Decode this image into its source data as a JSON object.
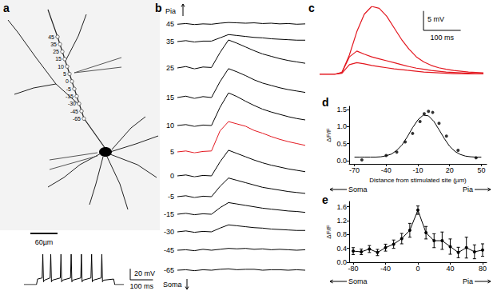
{
  "chart_data": [
    {
      "type": "diagram",
      "title": "a",
      "site_labels": [
        45,
        35,
        25,
        15,
        10,
        5,
        0,
        -5,
        -15,
        -30,
        -45,
        -65
      ],
      "scale_bar": {
        "value": 60,
        "label": "60µm"
      }
    },
    {
      "type": "line",
      "color": "#000000",
      "tick_labels": false,
      "x": [
        0,
        55,
        60,
        80,
        83,
        86,
        90,
        115,
        118,
        121,
        125,
        160,
        163,
        166,
        170,
        205,
        208,
        211,
        215,
        250,
        253,
        256,
        260,
        295,
        298,
        301,
        305,
        340,
        343,
        346,
        350,
        395,
        400,
        440
      ],
      "values": [
        0,
        0,
        10,
        12,
        55,
        5,
        8,
        12,
        55,
        5,
        8,
        12,
        55,
        5,
        8,
        12,
        55,
        5,
        8,
        12,
        55,
        5,
        8,
        12,
        55,
        5,
        8,
        12,
        55,
        5,
        8,
        10,
        0,
        0
      ],
      "scale_bars": [
        {
          "value": 20,
          "label": "20 mV"
        },
        {
          "value": 100,
          "label": "100 ms"
        }
      ]
    },
    {
      "type": "line",
      "title": "b",
      "tick_labels": false,
      "annotations": [
        "Pia",
        "Soma"
      ],
      "x": [
        0,
        50,
        100,
        150,
        200,
        250,
        300,
        350,
        400,
        450,
        500,
        550,
        600,
        650,
        700,
        750
      ],
      "series": [
        {
          "name": "45",
          "color": "#000000",
          "values": [
            0,
            0.02,
            -0.01,
            0.01,
            0,
            0.03,
            0.05,
            0.04,
            0.03,
            0.04,
            0.02,
            0.03,
            0.01,
            0.02,
            0,
            0.01
          ]
        },
        {
          "name": "35",
          "color": "#000000",
          "values": [
            0,
            0.02,
            -0.01,
            0.01,
            0.01,
            0.08,
            0.15,
            0.13,
            0.11,
            0.09,
            0.08,
            0.06,
            0.05,
            0.04,
            0.03,
            0.03
          ]
        },
        {
          "name": "25",
          "color": "#000000",
          "values": [
            0,
            0.03,
            -0.02,
            0.02,
            0.01,
            0.33,
            0.6,
            0.53,
            0.45,
            0.37,
            0.3,
            0.25,
            0.2,
            0.16,
            0.13,
            0.1
          ]
        },
        {
          "name": "15",
          "color": "#000000",
          "values": [
            0,
            0.03,
            -0.02,
            0.02,
            0,
            0.34,
            0.62,
            0.55,
            0.47,
            0.38,
            0.31,
            0.26,
            0.21,
            0.17,
            0.14,
            0.11
          ]
        },
        {
          "name": "10",
          "color": "#000000",
          "values": [
            0,
            0.02,
            -0.02,
            0.01,
            0,
            0.39,
            0.7,
            0.62,
            0.52,
            0.43,
            0.35,
            0.29,
            0.24,
            0.19,
            0.15,
            0.12
          ]
        },
        {
          "name": "5",
          "color": "#e3171f",
          "values": [
            0,
            0.02,
            -0.02,
            0.01,
            0.02,
            0.45,
            0.65,
            0.6,
            0.55,
            0.46,
            0.4,
            0.33,
            0.27,
            0.22,
            0.18,
            0.14
          ]
        },
        {
          "name": "0",
          "color": "#000000",
          "values": [
            0,
            0.02,
            -0.02,
            0.01,
            0,
            0.3,
            0.55,
            0.48,
            0.41,
            0.34,
            0.28,
            0.23,
            0.19,
            0.15,
            0.12,
            0.09
          ]
        },
        {
          "name": "-5",
          "color": "#000000",
          "values": [
            0,
            0.02,
            -0.02,
            0.01,
            0,
            0.22,
            0.4,
            0.35,
            0.3,
            0.25,
            0.2,
            0.17,
            0.14,
            0.11,
            0.09,
            0.07
          ]
        },
        {
          "name": "-15",
          "color": "#000000",
          "values": [
            0,
            0.02,
            -0.01,
            0.01,
            0,
            0.14,
            0.25,
            0.22,
            0.19,
            0.16,
            0.13,
            0.11,
            0.09,
            0.07,
            0.06,
            0.04
          ]
        },
        {
          "name": "-30",
          "color": "#000000",
          "values": [
            0,
            0.02,
            -0.01,
            0.01,
            0,
            0.08,
            0.15,
            0.13,
            0.11,
            0.09,
            0.08,
            0.06,
            0.05,
            0.04,
            0.03,
            0.03
          ]
        },
        {
          "name": "-45",
          "color": "#000000",
          "values": [
            0,
            0.01,
            -0.01,
            0.02,
            0,
            0.02,
            0.04,
            0.03,
            0.04,
            0.02,
            0.03,
            0.01,
            0.02,
            0.01,
            0,
            0.01
          ]
        },
        {
          "name": "-65",
          "color": "#000000",
          "values": [
            0,
            0.01,
            -0.01,
            0.01,
            0,
            0.02,
            0.03,
            0.01,
            0.02,
            0.02,
            0,
            0.01,
            0.01,
            0,
            0.01,
            0
          ]
        }
      ]
    },
    {
      "type": "line",
      "title": "c",
      "tick_labels": false,
      "x": [
        0,
        20,
        40,
        60,
        80,
        100,
        120,
        140,
        160,
        180,
        200,
        220,
        240,
        260,
        280,
        300,
        320,
        340,
        360,
        380,
        400,
        420,
        440
      ],
      "series": [
        {
          "color": "#e3171f",
          "values": [
            0,
            0,
            0,
            0.5,
            5,
            11,
            15.5,
            17.5,
            17,
            15,
            12,
            9,
            6.5,
            4.5,
            3.2,
            2.3,
            1.7,
            1.3,
            1,
            0.8,
            0.6,
            0.5,
            0.4
          ]
        },
        {
          "color": "#e3171f",
          "values": [
            0,
            0,
            0,
            0.5,
            4.5,
            6,
            5.2,
            4.5,
            4,
            3.5,
            3,
            2.5,
            2,
            1.6,
            1.3,
            1,
            0.8,
            0.6,
            0.5,
            0.4,
            0.3,
            0.2,
            0.2
          ]
        },
        {
          "color": "#e3171f",
          "values": [
            0,
            0,
            0,
            0.3,
            2.5,
            3,
            2.7,
            2.3,
            2,
            1.7,
            1.4,
            1.2,
            1,
            0.8,
            0.6,
            0.5,
            0.4,
            0.3,
            0.2,
            0.2,
            0.1,
            0.1,
            0.1
          ]
        }
      ],
      "scale_bars": [
        {
          "value": 5,
          "label": "5 mV"
        },
        {
          "value": 100,
          "label": "100 ms"
        }
      ]
    },
    {
      "type": "scatter",
      "title": "d",
      "grid": false,
      "x_label": "Distance from stimulated site (µm)",
      "y_label": "ΔF/F",
      "annotations": [
        "Soma",
        "Pia"
      ],
      "xlim": [
        -75,
        55
      ],
      "xticks": [
        -70,
        -40,
        -10,
        20,
        50
      ],
      "ylim": [
        -0.1,
        1.6
      ],
      "yticks": [
        {
          "value": 0,
          "label": "0.0"
        },
        {
          "value": 0.5,
          "label": "0.5"
        },
        {
          "value": 1,
          "label": "1.0"
        },
        {
          "value": 1.5,
          "label": "1.5"
        }
      ],
      "series": [
        {
          "type": "scatter",
          "marker": "circle",
          "color": "#000000",
          "x": [
            -63,
            -40,
            -30,
            -22,
            -15,
            -8,
            -4,
            0,
            4,
            10,
            17,
            28,
            45
          ],
          "values": [
            0.02,
            0.15,
            0.25,
            0.55,
            0.8,
            1.15,
            1.38,
            1.45,
            1.42,
            1.1,
            0.72,
            0.3,
            0.08
          ]
        },
        {
          "type": "line",
          "color": "#000000",
          "x": [
            -70,
            -65,
            -60,
            -55,
            -50,
            -45,
            -40,
            -35,
            -30,
            -25,
            -20,
            -15,
            -10,
            -5,
            0,
            5,
            10,
            15,
            20,
            25,
            30,
            35,
            40,
            45,
            50
          ],
          "values": [
            0.1,
            0.1,
            0.1,
            0.1,
            0.1,
            0.11,
            0.14,
            0.19,
            0.3,
            0.46,
            0.7,
            0.97,
            1.2,
            1.34,
            1.32,
            1.16,
            0.91,
            0.65,
            0.42,
            0.27,
            0.18,
            0.13,
            0.11,
            0.1,
            0.1
          ]
        }
      ]
    },
    {
      "type": "line",
      "title": "e",
      "grid": false,
      "marker": "circle",
      "color": "#000000",
      "y_label": "ΔF/F",
      "annotations": [
        "Soma",
        "Pia"
      ],
      "xlim": [
        -85,
        85
      ],
      "xticks": [
        -80,
        -40,
        0,
        40,
        80
      ],
      "ylim": [
        0,
        1.75
      ],
      "yticks": [
        {
          "value": 0,
          "label": "0.0"
        },
        {
          "value": 0.4,
          "label": "0.4"
        },
        {
          "value": 0.8,
          "label": "0.8"
        },
        {
          "value": 1.2,
          "label": "1.2"
        },
        {
          "value": 1.6,
          "label": "1.6"
        }
      ],
      "x": [
        -80,
        -70,
        -60,
        -50,
        -40,
        -30,
        -20,
        -10,
        0,
        10,
        20,
        30,
        40,
        50,
        60,
        70,
        80
      ],
      "values": [
        0.32,
        0.3,
        0.38,
        0.28,
        0.42,
        0.52,
        0.68,
        0.92,
        1.5,
        0.85,
        0.62,
        0.62,
        0.45,
        0.28,
        0.42,
        0.3,
        0.35
      ],
      "errors": [
        0.1,
        0.08,
        0.1,
        0.09,
        0.1,
        0.12,
        0.15,
        0.2,
        0.12,
        0.18,
        0.2,
        0.25,
        0.22,
        0.15,
        0.3,
        0.2,
        0.18
      ]
    }
  ]
}
